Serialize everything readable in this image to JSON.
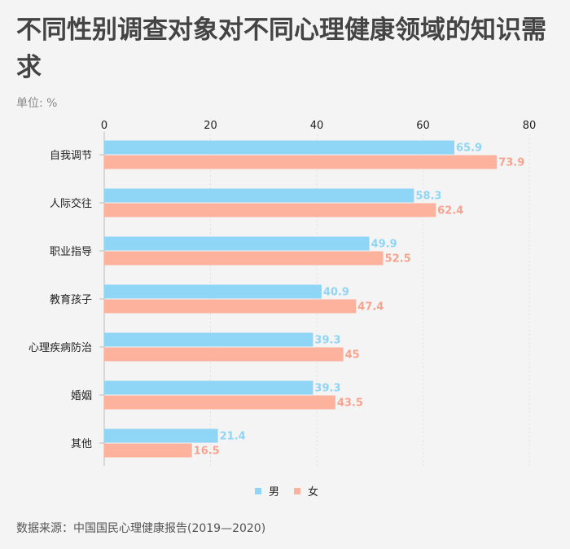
{
  "title": "不同性别调查对象对不同心理健康领域的知识需求",
  "unit": "单位: %",
  "source": "数据来源：中国国民心理健康报告(2019—2020)",
  "chart_data": {
    "type": "bar",
    "orientation": "horizontal",
    "categories": [
      "自我调节",
      "人际交往",
      "职业指导",
      "教育孩子",
      "心理疾病防治",
      "婚姻",
      "其他"
    ],
    "series": [
      {
        "name": "男",
        "color": "#8fd5f5",
        "values": [
          65.9,
          58.3,
          49.9,
          40.9,
          39.3,
          39.3,
          21.4
        ]
      },
      {
        "name": "女",
        "color": "#fdb29d",
        "values": [
          73.9,
          62.4,
          52.5,
          47.4,
          45,
          43.5,
          16.5
        ]
      }
    ],
    "label_colors": [
      "#8fd5f5",
      "#f7a48f"
    ],
    "xlim": [
      0,
      80
    ],
    "xticks": [
      0,
      20,
      40,
      60,
      80
    ],
    "axis_position": "top",
    "grid": true,
    "legend": "bottom-center"
  }
}
